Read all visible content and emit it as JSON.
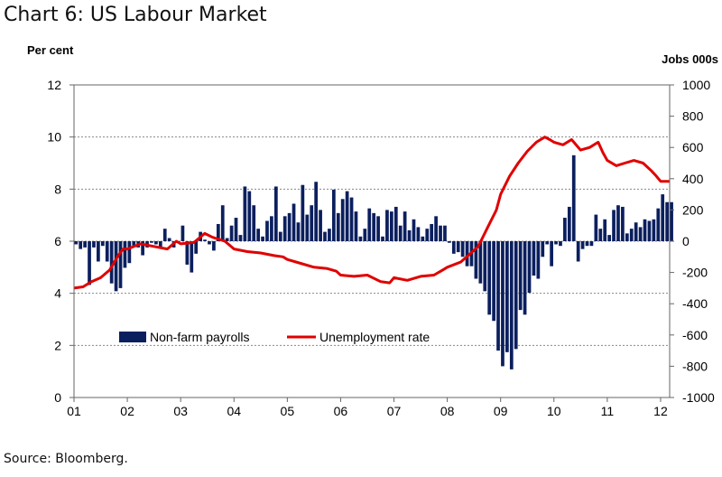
{
  "title": "Chart 6: US Labour Market",
  "source": "Source: Bloomberg.",
  "chart_data": {
    "type": "bar+line",
    "left_axis_label": "Per cent",
    "right_axis_label": "Jobs 000s",
    "left_ylim": [
      0,
      12
    ],
    "left_ticks": [
      "0",
      "2",
      "4",
      "6",
      "8",
      "10",
      "12"
    ],
    "right_ylim": [
      -1000,
      1000
    ],
    "right_ticks": [
      "-1000",
      "-800",
      "-600",
      "-400",
      "-200",
      "0",
      "200",
      "400",
      "600",
      "800",
      "1000"
    ],
    "x_ticks": [
      "01",
      "02",
      "03",
      "04",
      "05",
      "06",
      "07",
      "08",
      "09",
      "10",
      "11",
      "12"
    ],
    "x_range": [
      2001.0,
      2012.17
    ],
    "grid": "horizontal dashed",
    "legend": {
      "placement": "bottom-left inside plot",
      "bar_label": "Non-farm payrolls",
      "line_label": "Unemployment rate"
    },
    "colors": {
      "bars": "#0b1f5e",
      "line": "#e00000",
      "grid": "#888888"
    },
    "series": [
      {
        "name": "Non-farm payrolls",
        "kind": "bar",
        "axis": "right",
        "annual_values": {
          "2001": [
            -20,
            -50,
            -40,
            -280,
            -40,
            -130,
            -30,
            -130,
            -270,
            -320,
            -300,
            -170
          ],
          "2002": [
            -140,
            -30,
            -40,
            -90,
            -40,
            -10,
            -20,
            -40,
            80,
            20,
            -40,
            -10
          ],
          "2003": [
            100,
            -150,
            -200,
            -80,
            60,
            10,
            -20,
            -60,
            110,
            230,
            20,
            100
          ],
          "2004": [
            150,
            40,
            350,
            320,
            230,
            80,
            30,
            130,
            160,
            350,
            60,
            160
          ],
          "2005": [
            180,
            240,
            120,
            360,
            170,
            230,
            380,
            200,
            60,
            80,
            330,
            180
          ],
          "2006": [
            270,
            320,
            280,
            190,
            30,
            80,
            210,
            180,
            160,
            30,
            200,
            190
          ],
          "2007": [
            220,
            100,
            190,
            70,
            140,
            90,
            30,
            80,
            110,
            160,
            100,
            100
          ],
          "2008": [
            -10,
            -80,
            -70,
            -100,
            -160,
            -160,
            -240,
            -270,
            -320,
            -470,
            -510,
            -700
          ],
          "2009": [
            -800,
            -710,
            -820,
            -690,
            -440,
            -470,
            -330,
            -220,
            -240,
            -100,
            -20,
            -160
          ],
          "2010": [
            -20,
            -30,
            150,
            220,
            550,
            -130,
            -50,
            -30,
            -30,
            170,
            80,
            140
          ],
          "2011": [
            40,
            200,
            230,
            220,
            50,
            80,
            120,
            90,
            140,
            130,
            140,
            210
          ],
          "2012": [
            300,
            250,
            250
          ]
        }
      },
      {
        "name": "Unemployment rate",
        "kind": "line",
        "axis": "left",
        "points": [
          [
            2001.0,
            4.2
          ],
          [
            2001.17,
            4.25
          ],
          [
            2001.33,
            4.45
          ],
          [
            2001.5,
            4.6
          ],
          [
            2001.67,
            4.9
          ],
          [
            2001.83,
            5.45
          ],
          [
            2001.92,
            5.7
          ],
          [
            2002.0,
            5.7
          ],
          [
            2002.25,
            5.9
          ],
          [
            2002.5,
            5.8
          ],
          [
            2002.75,
            5.7
          ],
          [
            2002.92,
            6.0
          ],
          [
            2003.0,
            5.9
          ],
          [
            2003.25,
            5.95
          ],
          [
            2003.45,
            6.3
          ],
          [
            2003.6,
            6.15
          ],
          [
            2003.83,
            6.0
          ],
          [
            2004.0,
            5.7
          ],
          [
            2004.25,
            5.6
          ],
          [
            2004.5,
            5.55
          ],
          [
            2004.75,
            5.45
          ],
          [
            2004.92,
            5.4
          ],
          [
            2005.0,
            5.3
          ],
          [
            2005.25,
            5.15
          ],
          [
            2005.5,
            5.0
          ],
          [
            2005.75,
            4.95
          ],
          [
            2005.92,
            4.85
          ],
          [
            2006.0,
            4.7
          ],
          [
            2006.25,
            4.65
          ],
          [
            2006.5,
            4.7
          ],
          [
            2006.75,
            4.45
          ],
          [
            2006.92,
            4.4
          ],
          [
            2007.0,
            4.6
          ],
          [
            2007.25,
            4.5
          ],
          [
            2007.5,
            4.65
          ],
          [
            2007.75,
            4.7
          ],
          [
            2007.92,
            4.9
          ],
          [
            2008.0,
            5.0
          ],
          [
            2008.25,
            5.2
          ],
          [
            2008.42,
            5.5
          ],
          [
            2008.58,
            5.8
          ],
          [
            2008.75,
            6.5
          ],
          [
            2008.92,
            7.2
          ],
          [
            2009.0,
            7.8
          ],
          [
            2009.17,
            8.5
          ],
          [
            2009.33,
            9.0
          ],
          [
            2009.5,
            9.45
          ],
          [
            2009.67,
            9.8
          ],
          [
            2009.83,
            10.0
          ],
          [
            2009.92,
            9.9
          ],
          [
            2010.0,
            9.8
          ],
          [
            2010.17,
            9.7
          ],
          [
            2010.33,
            9.9
          ],
          [
            2010.5,
            9.5
          ],
          [
            2010.67,
            9.6
          ],
          [
            2010.83,
            9.8
          ],
          [
            2010.92,
            9.4
          ],
          [
            2011.0,
            9.1
          ],
          [
            2011.17,
            8.9
          ],
          [
            2011.33,
            9.0
          ],
          [
            2011.5,
            9.1
          ],
          [
            2011.67,
            9.0
          ],
          [
            2011.83,
            8.7
          ],
          [
            2011.92,
            8.5
          ],
          [
            2012.0,
            8.3
          ],
          [
            2012.17,
            8.3
          ]
        ]
      }
    ]
  }
}
